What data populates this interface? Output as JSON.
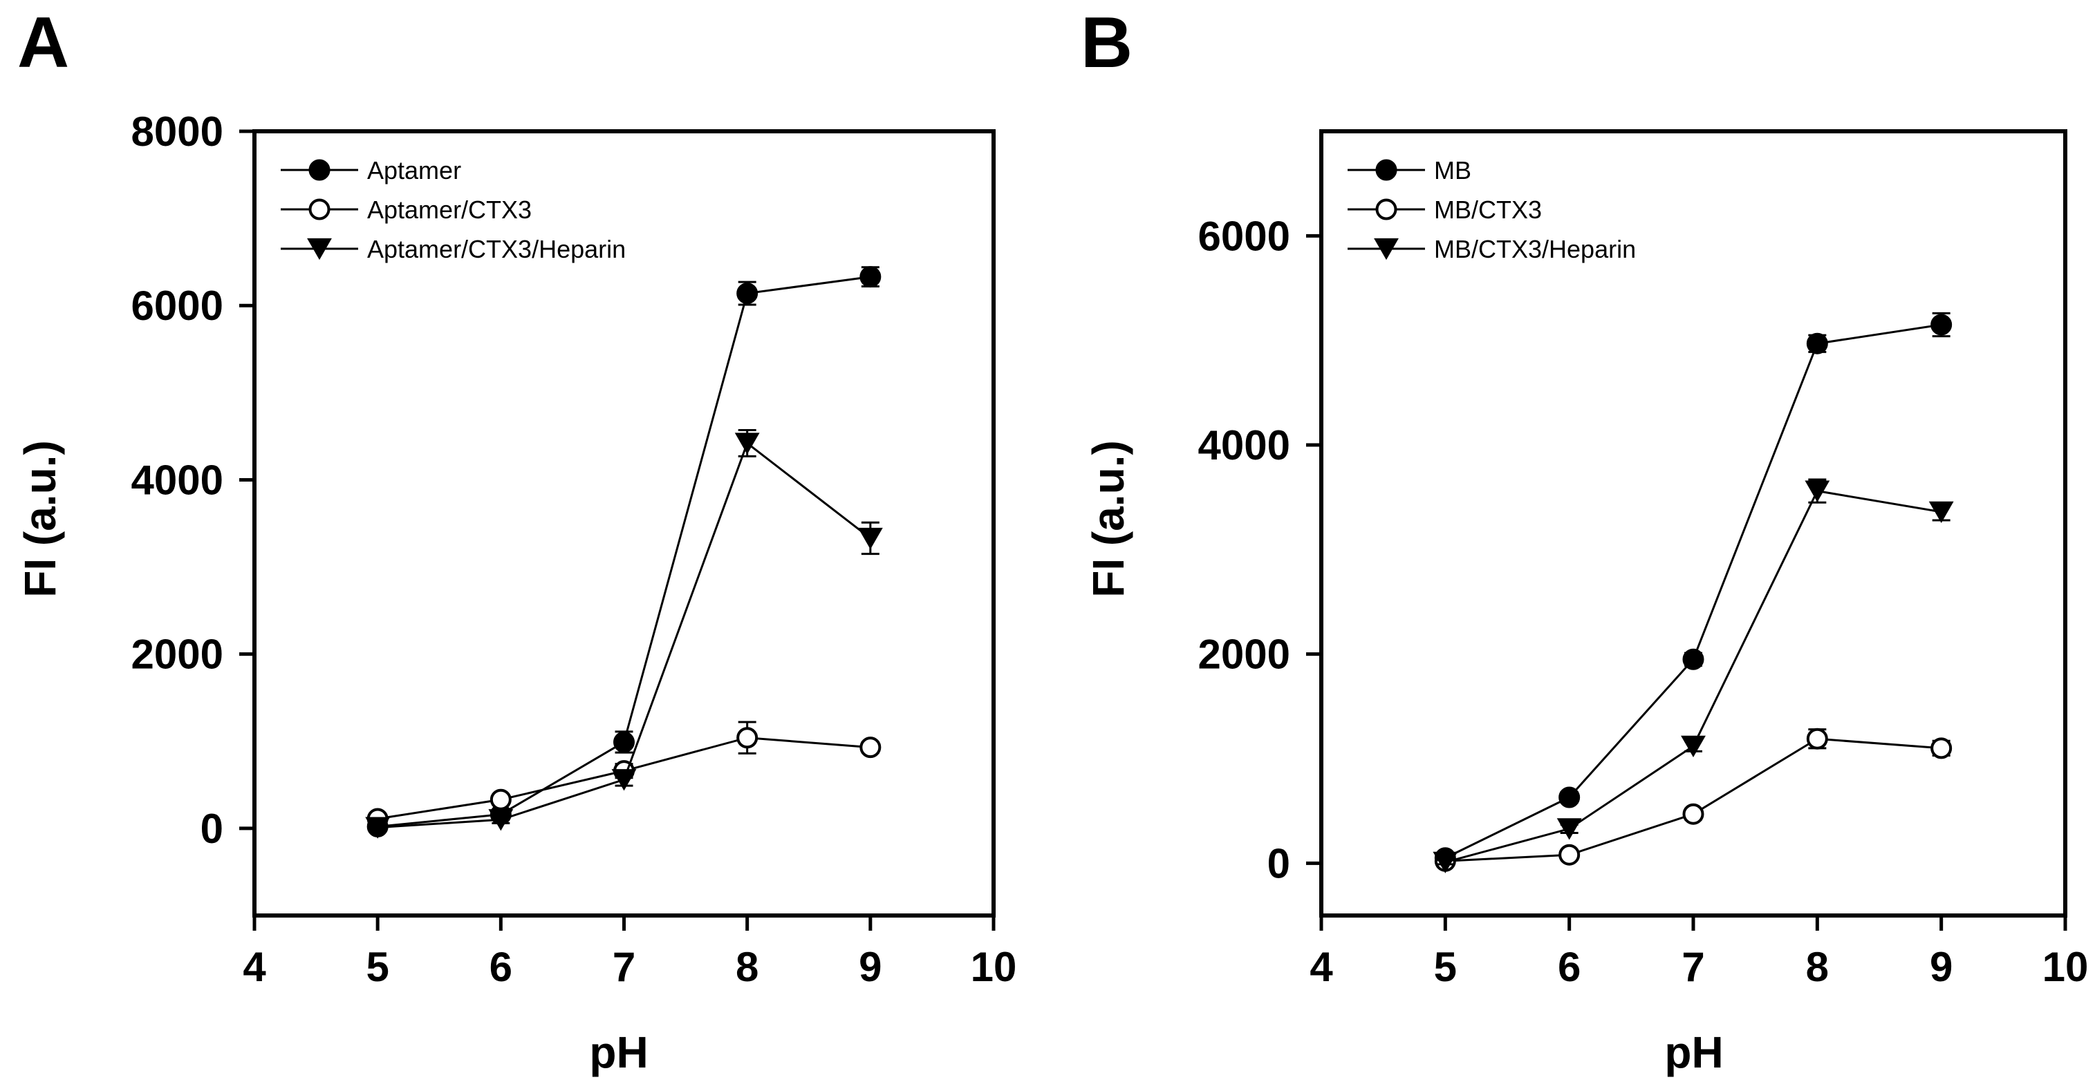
{
  "chart_data": [
    {
      "panel": "A",
      "type": "line",
      "xlabel": "pH",
      "ylabel": "FI (a.u.)",
      "xlim": [
        4,
        10
      ],
      "ylim": [
        -1000,
        8000
      ],
      "xticks": [
        4,
        5,
        6,
        7,
        8,
        9,
        10
      ],
      "yticks": [
        0,
        2000,
        4000,
        6000,
        8000
      ],
      "legend_position": "top-left",
      "x": [
        5,
        6,
        7,
        8,
        9
      ],
      "series": [
        {
          "name": "Aptamer",
          "marker": "filled-circle",
          "values": [
            20,
            160,
            990,
            6140,
            6330
          ],
          "errors": [
            30,
            50,
            120,
            130,
            110
          ]
        },
        {
          "name": "Aptamer/CTX3",
          "marker": "open-circle",
          "values": [
            110,
            330,
            660,
            1040,
            930
          ],
          "errors": [
            30,
            40,
            80,
            180,
            60
          ]
        },
        {
          "name": "Aptamer/CTX3/Heparin",
          "marker": "filled-triangle-down",
          "values": [
            10,
            100,
            560,
            4420,
            3330
          ],
          "errors": [
            30,
            40,
            70,
            150,
            180
          ]
        }
      ]
    },
    {
      "panel": "B",
      "type": "line",
      "xlabel": "pH",
      "ylabel": "FI (a.u.)",
      "xlim": [
        4,
        10
      ],
      "ylim": [
        -500,
        7000
      ],
      "xticks": [
        4,
        5,
        6,
        7,
        8,
        9,
        10
      ],
      "yticks": [
        0,
        2000,
        4000,
        6000
      ],
      "legend_position": "top-left",
      "x": [
        5,
        6,
        7,
        8,
        9
      ],
      "series": [
        {
          "name": "MB",
          "marker": "filled-circle",
          "values": [
            50,
            630,
            1950,
            4970,
            5150
          ],
          "errors": [
            30,
            50,
            60,
            80,
            110
          ]
        },
        {
          "name": "MB/CTX3",
          "marker": "open-circle",
          "values": [
            20,
            80,
            470,
            1190,
            1100
          ],
          "errors": [
            20,
            30,
            50,
            90,
            70
          ]
        },
        {
          "name": "MB/CTX3/Heparin",
          "marker": "filled-triangle-down",
          "values": [
            10,
            330,
            1120,
            3560,
            3360
          ],
          "errors": [
            20,
            40,
            50,
            110,
            80
          ]
        }
      ]
    }
  ]
}
